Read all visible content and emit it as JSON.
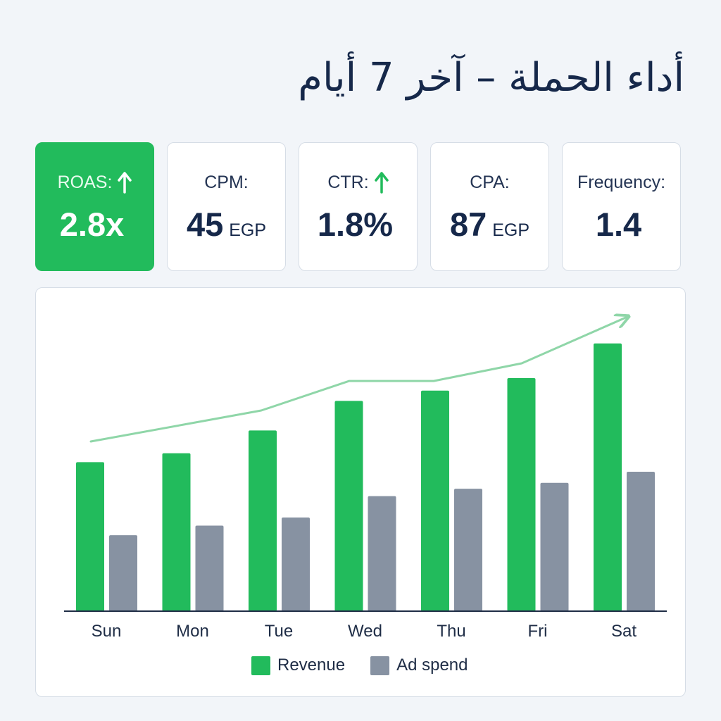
{
  "title": "أداء الحملة – آخر 7 أيام",
  "kpis": [
    {
      "label": "ROAS:",
      "value": "2.8x",
      "unit": "",
      "trend": "up",
      "trend_color": "#ffffff",
      "active": true
    },
    {
      "label": "CPM:",
      "value": "45",
      "unit": "EGP",
      "trend": "",
      "active": false
    },
    {
      "label": "CTR:",
      "value": "1.8%",
      "unit": "",
      "trend": "up",
      "trend_color": "#22bb5c",
      "active": false
    },
    {
      "label": "CPA:",
      "value": "87",
      "unit": "EGP",
      "trend": "",
      "active": false
    },
    {
      "label": "Frequency:",
      "value": "1.4",
      "unit": "",
      "trend": "",
      "active": false
    }
  ],
  "chart_data": {
    "type": "bar",
    "categories": [
      "Sun",
      "Mon",
      "Tue",
      "Wed",
      "Thu",
      "Fri",
      "Sat"
    ],
    "series": [
      {
        "name": "Revenue",
        "color": "#22bb5c",
        "values": [
          202,
          214,
          245,
          285,
          299,
          316,
          363
        ]
      },
      {
        "name": "Ad spend",
        "color": "#8792a2",
        "values": [
          103,
          116,
          127,
          156,
          166,
          174,
          189
        ]
      }
    ],
    "trend_line": {
      "color": "#8fd6a8",
      "values": [
        230,
        253,
        272,
        312,
        312,
        336,
        399
      ]
    },
    "ylim": [
      0,
      420
    ],
    "grid": false,
    "legend": "bottom-center",
    "xlabel": "",
    "ylabel": ""
  }
}
